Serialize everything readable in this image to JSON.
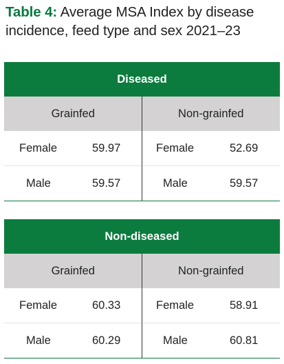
{
  "caption": {
    "label": "Table 4:",
    "text": " Average MSA Index by disease incidence, feed type and sex 2021–23"
  },
  "tables": [
    {
      "header": "Diseased",
      "groups": [
        "Grainfed",
        "Non-grainfed"
      ],
      "rows": [
        {
          "left_label": "Female",
          "left_value": "59.97",
          "right_label": "Female",
          "right_value": "52.69"
        },
        {
          "left_label": "Male",
          "left_value": "59.57",
          "right_label": "Male",
          "right_value": "59.57"
        }
      ]
    },
    {
      "header": "Non-diseased",
      "groups": [
        "Grainfed",
        "Non-grainfed"
      ],
      "rows": [
        {
          "left_label": "Female",
          "left_value": "60.33",
          "right_label": "Female",
          "right_value": "58.91"
        },
        {
          "left_label": "Male",
          "left_value": "60.29",
          "right_label": "Male",
          "right_value": "60.81"
        }
      ]
    }
  ],
  "colors": {
    "accent": "#0b7b3e",
    "subheader_bg": "#d4d2d3"
  }
}
